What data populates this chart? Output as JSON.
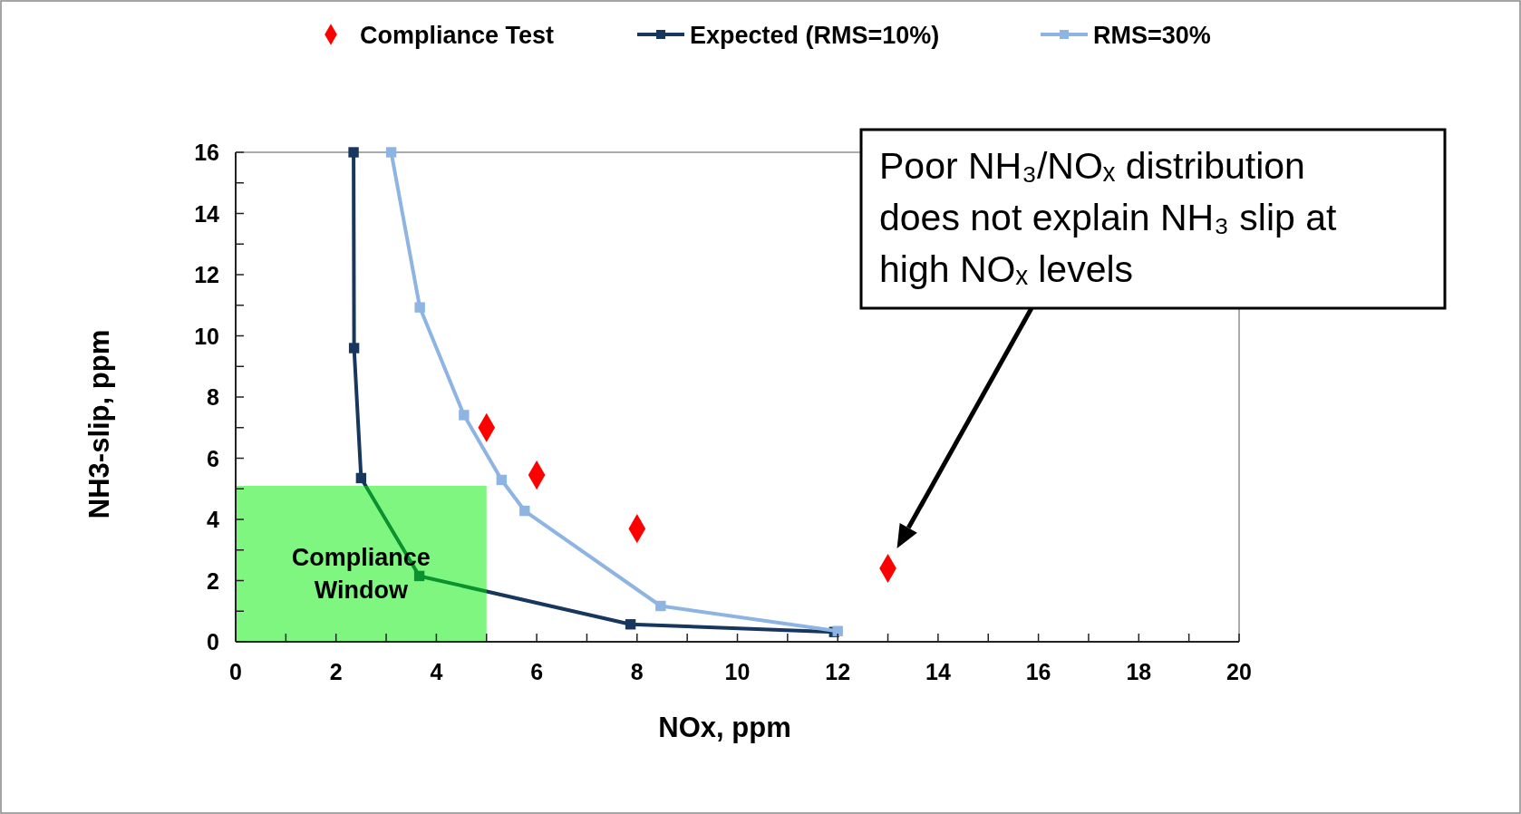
{
  "chart_data": {
    "type": "line",
    "xlabel": "NOx, ppm",
    "ylabel": "NH3-slip, ppm",
    "xlim": [
      0,
      20
    ],
    "ylim": [
      0,
      16
    ],
    "xticks": [
      0,
      {
        "value": 1,
        "label": null
      },
      2,
      {
        "value": 3,
        "label": null
      },
      4,
      {
        "value": 5,
        "label": null
      },
      6,
      {
        "value": 7,
        "label": null
      },
      8,
      {
        "value": 9,
        "label": null
      },
      10,
      {
        "value": 11,
        "label": null
      },
      12,
      {
        "value": 13,
        "label": null
      },
      14,
      {
        "value": 15,
        "label": null
      },
      16,
      {
        "value": 17,
        "label": null
      },
      18,
      {
        "value": 19,
        "label": null
      },
      20
    ],
    "yticks": [
      0,
      {
        "value": 1,
        "label": null
      },
      2,
      {
        "value": 3,
        "label": null
      },
      4,
      {
        "value": 5,
        "label": null
      },
      6,
      {
        "value": 7,
        "label": null
      },
      8,
      {
        "value": 9,
        "label": null
      },
      10,
      {
        "value": 11,
        "label": null
      },
      12,
      {
        "value": 13,
        "label": null
      },
      14,
      {
        "value": 15,
        "label": null
      },
      16
    ],
    "legend": "top",
    "grid": false,
    "series": [
      {
        "name": "Compliance Test",
        "type": "scatter",
        "marker": "diamond",
        "color": "#ff0000",
        "x": [
          5,
          6,
          8,
          13
        ],
        "values": [
          7,
          5.45,
          3.7,
          2.4
        ]
      },
      {
        "name": "Expected (RMS=10%)",
        "marker": "square",
        "line_style": "solid",
        "color": "#17375e",
        "x": [
          2.35,
          2.36,
          2.5,
          3.66,
          7.87,
          11.93
        ],
        "values": [
          16,
          9.6,
          5.35,
          2.15,
          0.57,
          0.32
        ]
      },
      {
        "name": "RMS=30%",
        "marker": "square",
        "line_style": "solid",
        "color": "#8db4e2",
        "x": [
          3.1,
          3.67,
          4.55,
          5.3,
          5.76,
          8.47,
          12.0
        ],
        "values": [
          16,
          10.93,
          7.41,
          5.29,
          4.28,
          1.17,
          0.35
        ]
      },
      {
        "type": "area",
        "color": "#00ee00",
        "x": [
          0,
          5
        ],
        "values": [
          5.1,
          5.1
        ]
      }
    ],
    "annotations": [
      "Compliance Window",
      "Poor NH₃/NOₓ distribution does not explain NH₃ slip at high NOₓ levels"
    ]
  }
}
